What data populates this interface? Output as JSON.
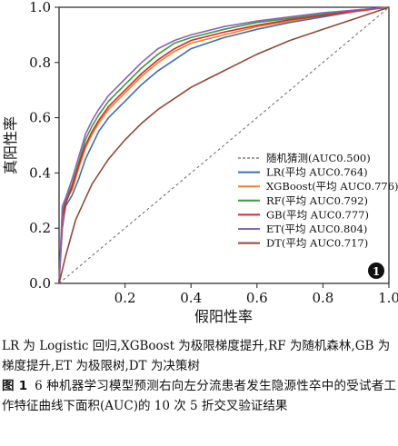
{
  "chart_data": {
    "type": "line",
    "xlabel": "假阳性率",
    "ylabel": "真阳性率",
    "xlim": [
      0,
      1
    ],
    "ylim": [
      0,
      1
    ],
    "xticks": [
      "0.2",
      "0.4",
      "0.6",
      "0.8",
      "1.0"
    ],
    "yticks": [
      "0.0",
      "0.2",
      "0.4",
      "0.6",
      "0.8",
      "1.0"
    ],
    "legend_position": "lower-right",
    "panel_label": "1",
    "series": [
      {
        "name": "随机猜测(AUC0.500)",
        "color": "#666666",
        "dashed": true,
        "points": [
          [
            0,
            0
          ],
          [
            1,
            1
          ]
        ]
      },
      {
        "name": "LR(平均 AUC0.764)",
        "color": "#3a6fb0",
        "dashed": false,
        "points": [
          [
            0,
            0
          ],
          [
            0.01,
            0.2
          ],
          [
            0.02,
            0.28
          ],
          [
            0.04,
            0.32
          ],
          [
            0.06,
            0.38
          ],
          [
            0.08,
            0.45
          ],
          [
            0.1,
            0.5
          ],
          [
            0.12,
            0.55
          ],
          [
            0.15,
            0.6
          ],
          [
            0.2,
            0.66
          ],
          [
            0.25,
            0.72
          ],
          [
            0.3,
            0.77
          ],
          [
            0.35,
            0.81
          ],
          [
            0.4,
            0.85
          ],
          [
            0.5,
            0.89
          ],
          [
            0.6,
            0.92
          ],
          [
            0.7,
            0.945
          ],
          [
            0.8,
            0.965
          ],
          [
            0.9,
            0.985
          ],
          [
            1,
            1
          ]
        ]
      },
      {
        "name": "XGBoost(平均 AUC0.776)",
        "color": "#f07f2e",
        "dashed": false,
        "points": [
          [
            0,
            0
          ],
          [
            0.01,
            0.22
          ],
          [
            0.02,
            0.3
          ],
          [
            0.04,
            0.34
          ],
          [
            0.06,
            0.42
          ],
          [
            0.08,
            0.49
          ],
          [
            0.1,
            0.54
          ],
          [
            0.12,
            0.58
          ],
          [
            0.15,
            0.63
          ],
          [
            0.2,
            0.69
          ],
          [
            0.25,
            0.75
          ],
          [
            0.3,
            0.8
          ],
          [
            0.35,
            0.84
          ],
          [
            0.4,
            0.87
          ],
          [
            0.5,
            0.9
          ],
          [
            0.6,
            0.93
          ],
          [
            0.7,
            0.95
          ],
          [
            0.8,
            0.97
          ],
          [
            0.9,
            0.985
          ],
          [
            1,
            1
          ]
        ]
      },
      {
        "name": "RF(平均 AUC0.792)",
        "color": "#3a9b3a",
        "dashed": false,
        "points": [
          [
            0,
            0
          ],
          [
            0.01,
            0.26
          ],
          [
            0.02,
            0.3
          ],
          [
            0.04,
            0.36
          ],
          [
            0.06,
            0.44
          ],
          [
            0.08,
            0.52
          ],
          [
            0.1,
            0.57
          ],
          [
            0.12,
            0.61
          ],
          [
            0.15,
            0.66
          ],
          [
            0.2,
            0.72
          ],
          [
            0.25,
            0.78
          ],
          [
            0.3,
            0.83
          ],
          [
            0.35,
            0.87
          ],
          [
            0.4,
            0.89
          ],
          [
            0.5,
            0.92
          ],
          [
            0.6,
            0.945
          ],
          [
            0.7,
            0.96
          ],
          [
            0.8,
            0.975
          ],
          [
            0.9,
            0.99
          ],
          [
            1,
            1
          ]
        ]
      },
      {
        "name": "GB(平均 AUC0.777)",
        "color": "#d62728",
        "dashed": false,
        "points": [
          [
            0,
            0
          ],
          [
            0.01,
            0.24
          ],
          [
            0.02,
            0.29
          ],
          [
            0.04,
            0.35
          ],
          [
            0.06,
            0.43
          ],
          [
            0.08,
            0.5
          ],
          [
            0.1,
            0.55
          ],
          [
            0.12,
            0.59
          ],
          [
            0.15,
            0.64
          ],
          [
            0.2,
            0.7
          ],
          [
            0.25,
            0.76
          ],
          [
            0.3,
            0.81
          ],
          [
            0.35,
            0.85
          ],
          [
            0.4,
            0.88
          ],
          [
            0.5,
            0.91
          ],
          [
            0.6,
            0.935
          ],
          [
            0.7,
            0.955
          ],
          [
            0.8,
            0.97
          ],
          [
            0.9,
            0.987
          ],
          [
            1,
            1
          ]
        ]
      },
      {
        "name": "ET(平均 AUC0.804)",
        "color": "#8a63b8",
        "dashed": false,
        "points": [
          [
            0,
            0
          ],
          [
            0.01,
            0.28
          ],
          [
            0.02,
            0.31
          ],
          [
            0.04,
            0.38
          ],
          [
            0.06,
            0.46
          ],
          [
            0.08,
            0.54
          ],
          [
            0.1,
            0.59
          ],
          [
            0.12,
            0.63
          ],
          [
            0.15,
            0.68
          ],
          [
            0.2,
            0.74
          ],
          [
            0.25,
            0.8
          ],
          [
            0.3,
            0.85
          ],
          [
            0.35,
            0.88
          ],
          [
            0.4,
            0.9
          ],
          [
            0.5,
            0.93
          ],
          [
            0.6,
            0.95
          ],
          [
            0.7,
            0.965
          ],
          [
            0.8,
            0.98
          ],
          [
            0.9,
            0.99
          ],
          [
            1,
            1
          ]
        ]
      },
      {
        "name": "DT(平均 AUC0.717)",
        "color": "#8c4a38",
        "dashed": false,
        "points": [
          [
            0,
            0
          ],
          [
            0.02,
            0.1
          ],
          [
            0.05,
            0.23
          ],
          [
            0.1,
            0.36
          ],
          [
            0.15,
            0.45
          ],
          [
            0.2,
            0.52
          ],
          [
            0.25,
            0.58
          ],
          [
            0.3,
            0.63
          ],
          [
            0.35,
            0.67
          ],
          [
            0.4,
            0.71
          ],
          [
            0.45,
            0.74
          ],
          [
            0.5,
            0.77
          ],
          [
            0.6,
            0.83
          ],
          [
            0.7,
            0.88
          ],
          [
            0.8,
            0.92
          ],
          [
            0.9,
            0.96
          ],
          [
            1,
            1
          ]
        ]
      }
    ]
  },
  "notes": {
    "abbreviations": "LR 为 Logistic 回归,XGBoost 为极限梯度提升,RF 为随机森林,GB 为梯度提升,ET 为极限树,DT 为决策树",
    "figure_label": "图 1",
    "caption": "6 种机器学习模型预测右向左分流患者发生隐源性卒中的受试者工作特征曲线下面积(AUC)的 10 次 5 折交叉验证结果"
  }
}
